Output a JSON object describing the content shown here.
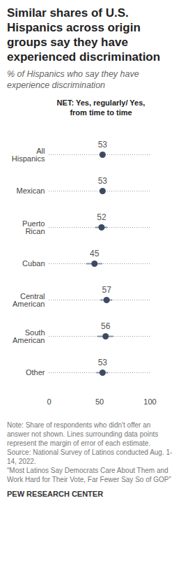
{
  "chart_data": {
    "type": "dot",
    "orientation": "horizontal",
    "title": "Similar shares of U.S. Hispanics across origin groups say they have experienced discrimination",
    "subtitle": "% of Hispanics who say they have experience discrimination",
    "column_header": "NET: Yes, regularly/ Yes, from time to time",
    "categories": [
      "All Hispanics",
      "Mexican",
      "Puerto Rican",
      "Cuban",
      "Central American",
      "South American",
      "Other"
    ],
    "values": [
      53,
      53,
      52,
      45,
      57,
      56,
      53
    ],
    "margin_of_error": [
      1.5,
      2.5,
      6,
      8,
      6,
      8,
      6
    ],
    "color": "#3c4a62",
    "data_labels": true,
    "xlim": [
      0,
      100
    ],
    "xticks": [
      0,
      50,
      100
    ],
    "notes": [
      "Note: Share of respondents who didn't offer an answer not shown. Lines surrounding data points represent the margin of error of each estimate.",
      "Source: National Survey of Latinos conducted Aug. 1-14, 2022.",
      "“Most Latinos Say Democrats Care About Them and Work Hard for Their Vote, Far Fewer Say So of GOP”"
    ],
    "credit": "PEW RESEARCH CENTER"
  }
}
